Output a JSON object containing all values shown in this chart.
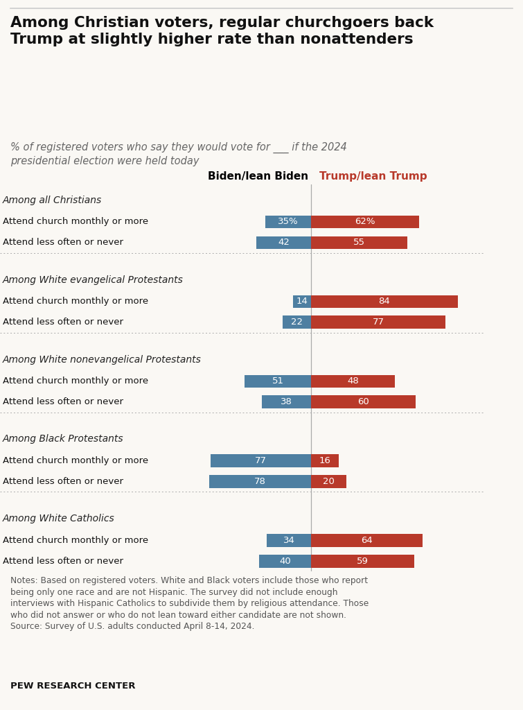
{
  "title": "Among Christian voters, regular churchgoers back\nTrump at slightly higher rate than nonattenders",
  "subtitle": "% of registered voters who say they would vote for ___ if the 2024\npresidential election were held today",
  "col_headers": [
    "Biden/lean Biden",
    "Trump/lean Trump"
  ],
  "groups": [
    {
      "group_label": "Among all Christians",
      "rows": [
        {
          "label": "Attend church monthly or more",
          "biden": 35,
          "trump": 62,
          "show_pct": true
        },
        {
          "label": "Attend less often or never",
          "biden": 42,
          "trump": 55,
          "show_pct": false
        }
      ]
    },
    {
      "group_label": "Among White evangelical Protestants",
      "rows": [
        {
          "label": "Attend church monthly or more",
          "biden": 14,
          "trump": 84,
          "show_pct": false
        },
        {
          "label": "Attend less often or never",
          "biden": 22,
          "trump": 77,
          "show_pct": false
        }
      ]
    },
    {
      "group_label": "Among White nonevangelical Protestants",
      "rows": [
        {
          "label": "Attend church monthly or more",
          "biden": 51,
          "trump": 48,
          "show_pct": false
        },
        {
          "label": "Attend less often or never",
          "biden": 38,
          "trump": 60,
          "show_pct": false
        }
      ]
    },
    {
      "group_label": "Among Black Protestants",
      "rows": [
        {
          "label": "Attend church monthly or more",
          "biden": 77,
          "trump": 16,
          "show_pct": false
        },
        {
          "label": "Attend less often or never",
          "biden": 78,
          "trump": 20,
          "show_pct": false
        }
      ]
    },
    {
      "group_label": "Among White Catholics",
      "rows": [
        {
          "label": "Attend church monthly or more",
          "biden": 34,
          "trump": 64,
          "show_pct": false
        },
        {
          "label": "Attend less often or never",
          "biden": 40,
          "trump": 59,
          "show_pct": false
        }
      ]
    }
  ],
  "biden_color": "#4e7fa1",
  "trump_color": "#b8392a",
  "bar_height": 0.62,
  "notes": "Notes: Based on registered voters. White and Black voters include those who report\nbeing only one race and are not Hispanic. The survey did not include enough\ninterviews with Hispanic Catholics to subdivide them by religious attendance. Those\nwho did not answer or who do not lean toward either candidate are not shown.\nSource: Survey of U.S. adults conducted April 8-14, 2024.",
  "source": "PEW RESEARCH CENTER",
  "background_color": "#faf8f4"
}
